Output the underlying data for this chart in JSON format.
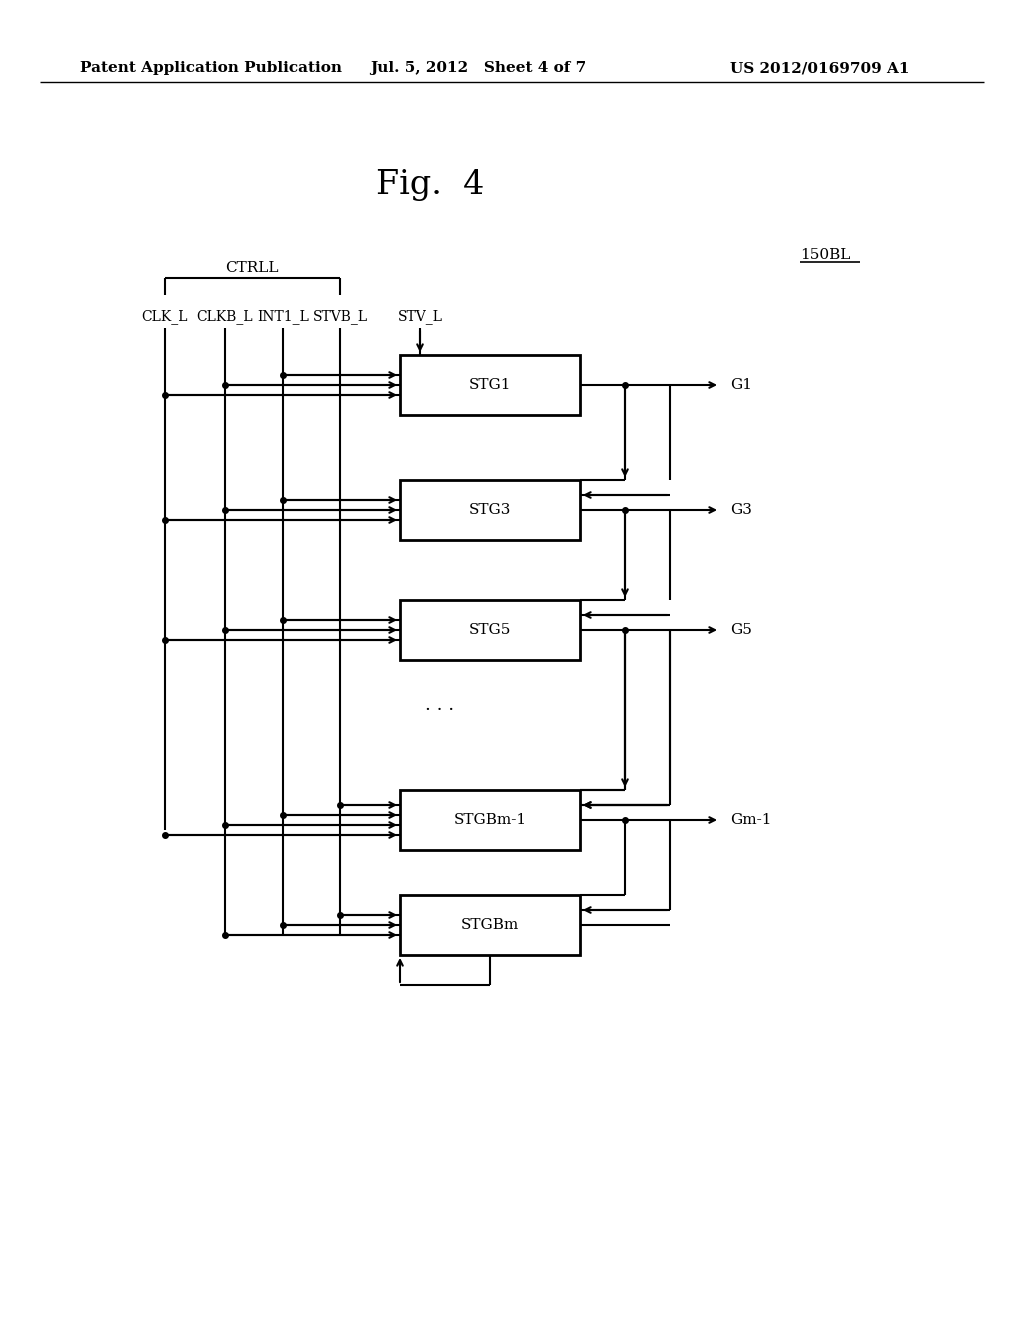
{
  "title": "Fig.  4",
  "header_left": "Patent Application Publication",
  "header_mid": "Jul. 5, 2012   Sheet 4 of 7",
  "header_right": "US 2012/0169709 A1",
  "label_150BL": "150BL",
  "label_CTRLL": "CTRLL",
  "signal_labels": [
    "CLK_L",
    "CLKB_L",
    "INT1_L",
    "STVB_L",
    "STV_L"
  ],
  "blocks": [
    {
      "label": "STG1",
      "output": "G1"
    },
    {
      "label": "STG3",
      "output": "G3"
    },
    {
      "label": "STG5",
      "output": "G5"
    },
    {
      "label": "STGBm-1",
      "output": "Gm-1"
    },
    {
      "label": "STGBm",
      "output": ""
    }
  ],
  "bg_color": "#ffffff",
  "fg_color": "#000000",
  "fig_label_fontsize": 24,
  "header_fontsize": 11,
  "signal_fontsize": 10,
  "block_fontsize": 11
}
